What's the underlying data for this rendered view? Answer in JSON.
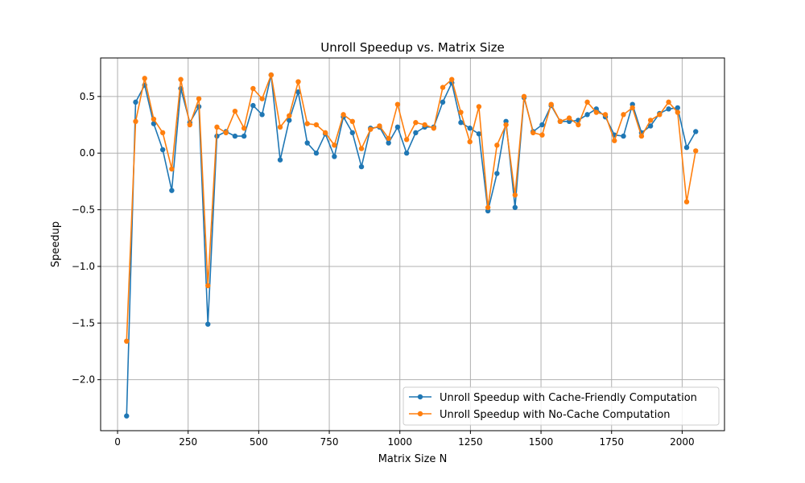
{
  "chart_data": {
    "type": "line",
    "title": "Unroll Speedup vs. Matrix Size",
    "xlabel": "Matrix Size N",
    "ylabel": "Speedup",
    "xlim": [
      -60,
      2150
    ],
    "ylim": [
      -2.45,
      0.84
    ],
    "xticks": [
      0,
      250,
      500,
      750,
      1000,
      1250,
      1500,
      1750,
      2000
    ],
    "yticks": [
      -2.0,
      -1.5,
      -1.0,
      -0.5,
      0.0,
      0.5
    ],
    "ytick_labels": [
      "−2.0",
      "−1.5",
      "−1.0",
      "−0.5",
      "0.0",
      "0.5"
    ],
    "grid": true,
    "legend_placement": "lower-right",
    "x": [
      32,
      64,
      96,
      128,
      160,
      192,
      224,
      256,
      288,
      320,
      352,
      384,
      416,
      448,
      480,
      512,
      544,
      576,
      608,
      640,
      672,
      704,
      736,
      768,
      800,
      832,
      864,
      896,
      928,
      960,
      992,
      1024,
      1056,
      1088,
      1120,
      1152,
      1184,
      1216,
      1248,
      1280,
      1312,
      1344,
      1376,
      1408,
      1440,
      1472,
      1504,
      1536,
      1568,
      1600,
      1632,
      1664,
      1696,
      1728,
      1760,
      1792,
      1824,
      1856,
      1888,
      1920,
      1952,
      1984,
      2016,
      2048
    ],
    "series": [
      {
        "name": "Unroll Speedup with Cache-Friendly Computation",
        "color": "#1f77b4",
        "values": [
          -2.32,
          0.45,
          0.6,
          0.26,
          0.03,
          -0.33,
          0.57,
          0.27,
          0.41,
          -1.51,
          0.15,
          0.19,
          0.15,
          0.15,
          0.42,
          0.34,
          0.69,
          -0.06,
          0.29,
          0.54,
          0.09,
          0.0,
          0.17,
          -0.03,
          0.32,
          0.18,
          -0.12,
          0.22,
          0.23,
          0.09,
          0.23,
          0.0,
          0.18,
          0.23,
          0.23,
          0.45,
          0.62,
          0.27,
          0.22,
          0.17,
          -0.51,
          -0.18,
          0.28,
          -0.48,
          0.49,
          0.19,
          0.25,
          0.42,
          0.28,
          0.28,
          0.29,
          0.34,
          0.39,
          0.32,
          0.16,
          0.15,
          0.43,
          0.18,
          0.24,
          0.35,
          0.39,
          0.4,
          0.05,
          0.19
        ]
      },
      {
        "name": "Unroll Speedup with No-Cache Computation",
        "color": "#ff7f0e",
        "values": [
          -1.66,
          0.28,
          0.66,
          0.3,
          0.18,
          -0.14,
          0.65,
          0.25,
          0.48,
          -1.17,
          0.23,
          0.18,
          0.37,
          0.22,
          0.57,
          0.48,
          0.69,
          0.23,
          0.33,
          0.63,
          0.26,
          0.25,
          0.18,
          0.07,
          0.34,
          0.28,
          0.04,
          0.21,
          0.24,
          0.13,
          0.43,
          0.12,
          0.27,
          0.25,
          0.22,
          0.58,
          0.65,
          0.36,
          0.1,
          0.41,
          -0.48,
          0.07,
          0.25,
          -0.37,
          0.5,
          0.18,
          0.16,
          0.43,
          0.28,
          0.31,
          0.25,
          0.45,
          0.36,
          0.34,
          0.11,
          0.34,
          0.4,
          0.15,
          0.29,
          0.34,
          0.45,
          0.36,
          -0.43,
          0.02
        ]
      }
    ]
  }
}
